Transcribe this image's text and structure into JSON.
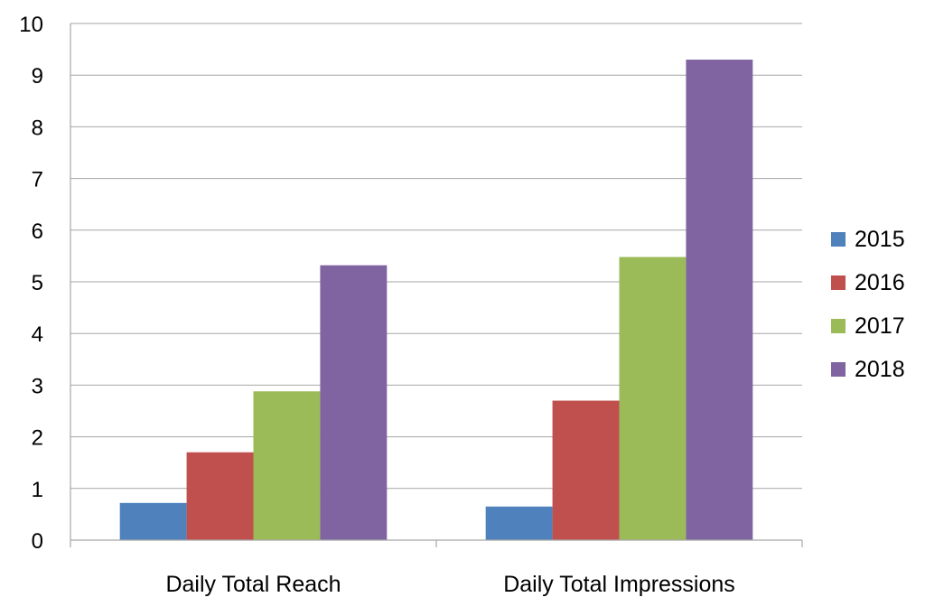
{
  "chart_data": {
    "type": "bar",
    "title": "",
    "xlabel": "",
    "ylabel": "",
    "categories": [
      "Daily Total Reach",
      "Daily Total Impressions"
    ],
    "series": [
      {
        "name": "2015",
        "color": "#4f81bd",
        "values": [
          0.72,
          0.65
        ]
      },
      {
        "name": "2016",
        "color": "#c0504d",
        "values": [
          1.7,
          2.7
        ]
      },
      {
        "name": "2017",
        "color": "#9bbb59",
        "values": [
          2.88,
          5.48
        ]
      },
      {
        "name": "2018",
        "color": "#8064a2",
        "values": [
          5.32,
          9.3
        ]
      }
    ],
    "ylim": [
      0,
      10
    ],
    "yticks": [
      "0",
      "1",
      "2",
      "3",
      "4",
      "5",
      "6",
      "7",
      "8",
      "9",
      "10"
    ],
    "grid": true,
    "legend": "right"
  }
}
